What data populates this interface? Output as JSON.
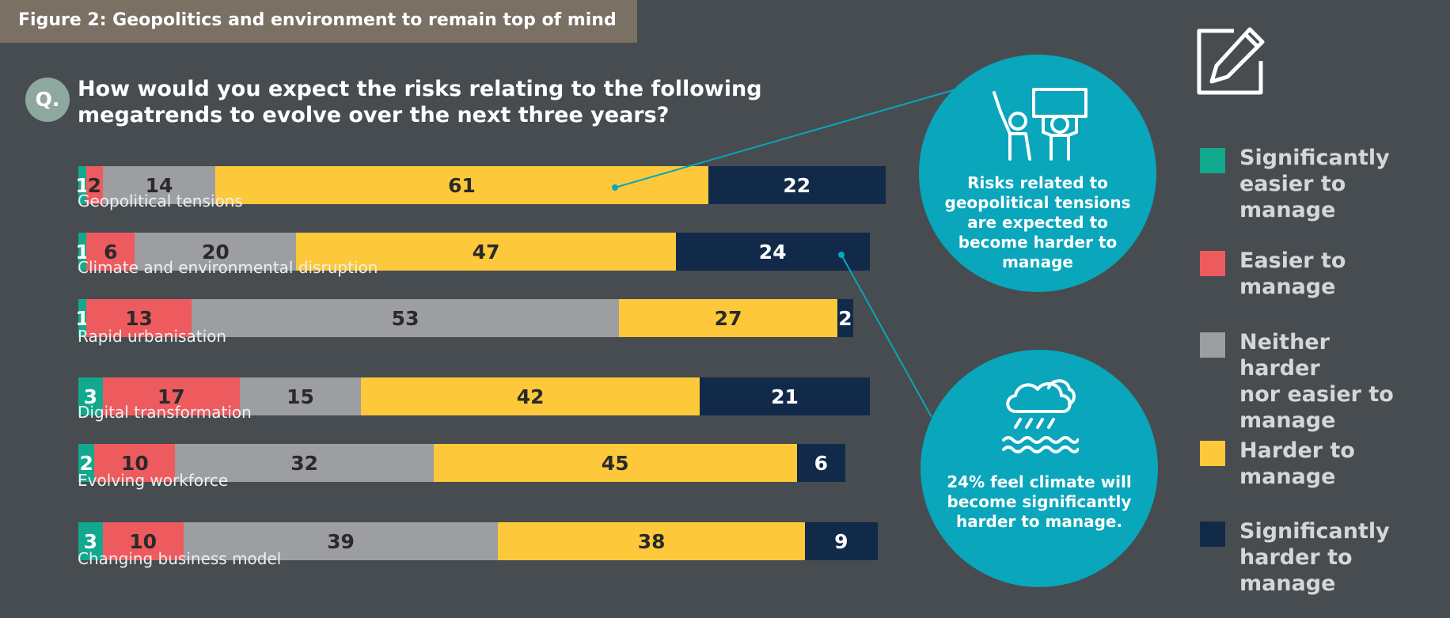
{
  "figure_title": "Figure 2: Geopolitics and environment to remain top of mind",
  "question_badge": "Q.",
  "question": "How would you expect the risks relating to the following megatrends to evolve over the next three years?",
  "colors": {
    "significantly_easier": "#12a88d",
    "easier": "#ee5b5e",
    "neither": "#9c9ea1",
    "harder": "#fdc93a",
    "significantly_harder": "#112a4a",
    "bubble": "#09a6bc"
  },
  "callouts": {
    "geopolitics": "Risks related to geopolitical tensions are expected to become harder to manage",
    "climate": "24% feel climate will become significantly harder to manage."
  },
  "icons": {
    "top_right": "edit-pencil-icon",
    "geopolitics": "protest-sign-icon",
    "climate": "rain-cloud-icon"
  },
  "chart_data": {
    "type": "bar",
    "orientation": "horizontal",
    "stacked": true,
    "unit": "%",
    "categories": [
      "Geopolitical tensions",
      "Climate and environmental disruption",
      "Rapid urbanisation",
      "Digital transformation",
      "Evolving workforce",
      "Changing business model"
    ],
    "series": [
      {
        "name": "Significantly easier to manage",
        "values": [
          1,
          1,
          1,
          3,
          2,
          3
        ]
      },
      {
        "name": "Easier to manage",
        "values": [
          2,
          6,
          13,
          17,
          10,
          10
        ]
      },
      {
        "name": "Neither harder nor easier to manage",
        "values": [
          14,
          20,
          53,
          15,
          32,
          39
        ]
      },
      {
        "name": "Harder to manage",
        "values": [
          61,
          47,
          27,
          42,
          45,
          38
        ]
      },
      {
        "name": "Significantly harder to manage",
        "values": [
          22,
          24,
          2,
          21,
          6,
          9
        ]
      }
    ],
    "legend_position": "right",
    "grid": false
  }
}
